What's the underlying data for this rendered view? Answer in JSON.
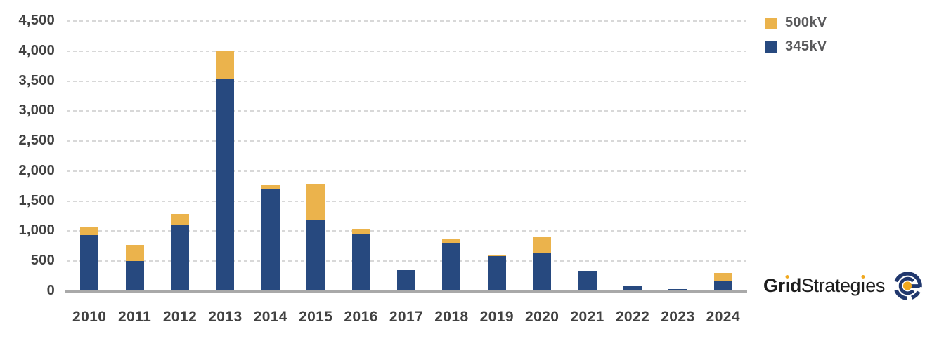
{
  "chart_data": {
    "type": "bar",
    "stacked": true,
    "title": "",
    "xlabel": "",
    "ylabel": "",
    "categories": [
      "2010",
      "2011",
      "2012",
      "2013",
      "2014",
      "2015",
      "2016",
      "2017",
      "2018",
      "2019",
      "2020",
      "2021",
      "2022",
      "2023",
      "2024"
    ],
    "series": [
      {
        "name": "500kV",
        "color": "#EBB34C",
        "values": [
          125,
          270,
          195,
          475,
          60,
          600,
          95,
          0,
          90,
          30,
          255,
          0,
          0,
          0,
          130
        ]
      },
      {
        "name": "345kV",
        "color": "#27497F",
        "values": [
          935,
          505,
          1095,
          3525,
          1700,
          1190,
          945,
          355,
          790,
          580,
          645,
          345,
          85,
          40,
          180
        ]
      }
    ],
    "ylim": [
      0,
      4500
    ],
    "y_ticks": [
      {
        "value": 4500,
        "label": "4,500"
      },
      {
        "value": 4000,
        "label": "4,000"
      },
      {
        "value": 3500,
        "label": "3,500"
      },
      {
        "value": 3000,
        "label": "3,000"
      },
      {
        "value": 2500,
        "label": "2,500"
      },
      {
        "value": 2000,
        "label": "2,000"
      },
      {
        "value": 1500,
        "label": "1,500"
      },
      {
        "value": 1000,
        "label": "1,000"
      },
      {
        "value": 500,
        "label": "500"
      },
      {
        "value": 0,
        "label": "0"
      }
    ],
    "grid": "horizontal-dashed",
    "legend_position": "top-right"
  },
  "legend": {
    "items": [
      {
        "label": "500kV",
        "series_index": 0
      },
      {
        "label": "345kV",
        "series_index": 1
      }
    ]
  },
  "branding": {
    "logo_bold": "Grid",
    "logo_regular": "Strategies",
    "logo_icon": "grid-strategies-g-icon",
    "colors": {
      "navy": "#21386E",
      "gold": "#F0A81F",
      "text": "#1E1E1E"
    }
  },
  "colors": {
    "background": "#FFFFFF",
    "grid_line": "#D8D8D8",
    "axis_line": "#A9A9A9",
    "tick_text": "#414141",
    "legend_text": "#59595B"
  }
}
